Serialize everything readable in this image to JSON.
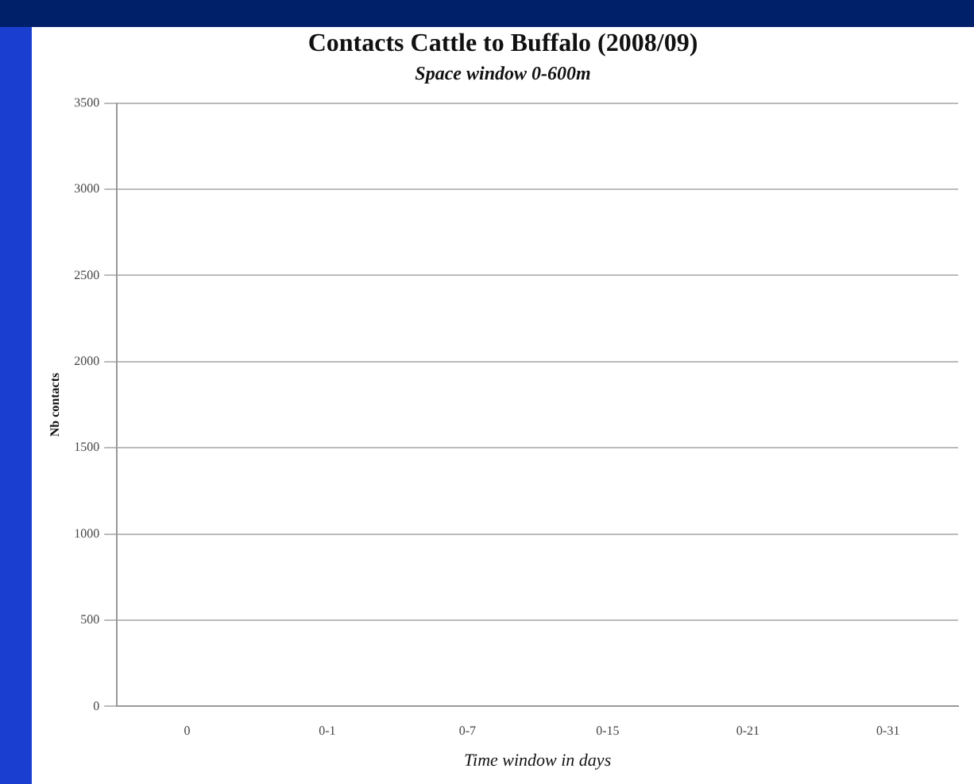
{
  "chart_data": {
    "type": "bar",
    "title": "Contacts Cattle to  Buffalo (2008/09)",
    "subtitle": "Space window 0-600m",
    "xlabel": "Time window in days",
    "ylabel": "Nb contacts",
    "categories": [
      "0",
      "0-1",
      "0-7",
      "0-15",
      "0-21",
      "0-31"
    ],
    "values": [
      null,
      null,
      null,
      null,
      null,
      null
    ],
    "ylim": [
      0,
      3500
    ],
    "yticks": [
      0,
      500,
      1000,
      1500,
      2000,
      2500,
      3000,
      3500
    ],
    "grid": "y",
    "legend": false
  }
}
